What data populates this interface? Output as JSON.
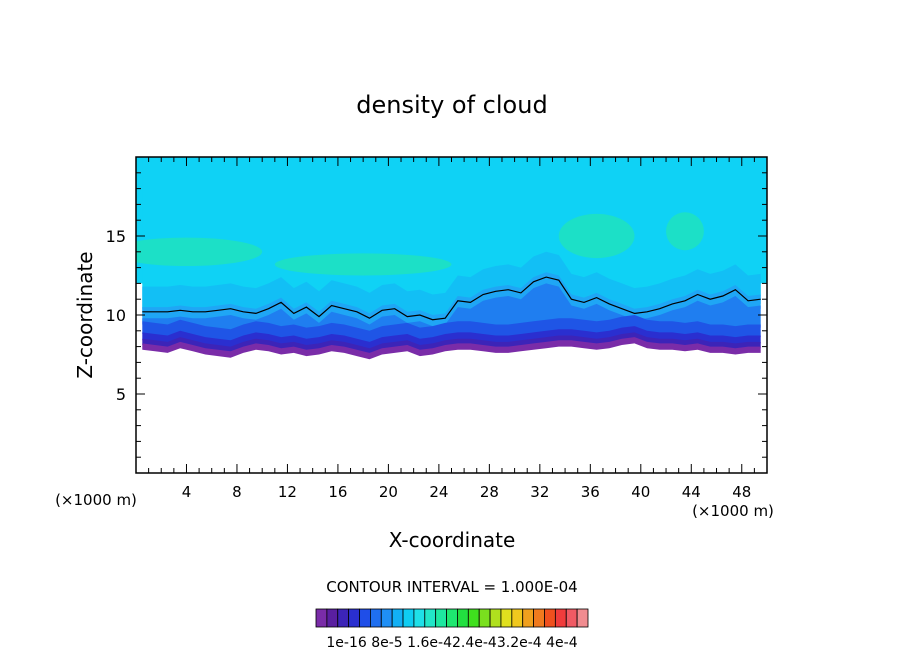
{
  "chart_data": {
    "type": "contour",
    "title": "density of cloud",
    "xlabel": "X-coordinate",
    "ylabel": "Z-coordinate",
    "x_unit": "(×1000 m)",
    "z_unit": "(×1000 m)",
    "xlim": [
      0,
      50
    ],
    "ylim": [
      0,
      20
    ],
    "x_ticks": [
      4,
      8,
      12,
      16,
      20,
      24,
      28,
      32,
      36,
      40,
      44,
      48
    ],
    "y_ticks": [
      5,
      10,
      15
    ],
    "contour_interval_label": "CONTOUR INTERVAL = 1.000E-04",
    "colorbar": {
      "colors": [
        "#7a2ca8",
        "#5a1fa0",
        "#3c24b8",
        "#2a2fd0",
        "#1f4ee8",
        "#1f6ff0",
        "#1f8ff5",
        "#12b0f5",
        "#0fcdf2",
        "#1fe0e8",
        "#22e6c8",
        "#1ee8a0",
        "#1ee870",
        "#22e040",
        "#3fe01e",
        "#7ae01e",
        "#b0e01e",
        "#e0e01e",
        "#f0c81e",
        "#f0a01e",
        "#f07a1e",
        "#f0501e",
        "#f03c3c",
        "#f05a64",
        "#f08c90"
      ],
      "tick_labels": [
        "1e-16",
        "8e-5",
        "1.6e-4",
        "2.4e-4",
        "3.2e-4",
        "4e-4"
      ],
      "tick_text": "1e-16 8e-5 1.6e-42.4e-43.2e-4 4e-4"
    },
    "cloud_base_z": [
      7.8,
      7.7,
      7.6,
      7.9,
      7.7,
      7.5,
      7.4,
      7.3,
      7.6,
      7.8,
      7.7,
      7.5,
      7.6,
      7.4,
      7.5,
      7.7,
      7.6,
      7.4,
      7.2,
      7.5,
      7.6,
      7.7,
      7.4,
      7.5,
      7.7,
      7.8,
      7.8,
      7.7,
      7.6,
      7.6,
      7.7,
      7.8,
      7.9,
      8.0,
      8.0,
      7.9,
      7.8,
      7.9,
      8.1,
      8.2,
      7.9,
      7.8,
      7.8,
      7.7,
      7.8,
      7.6,
      7.6,
      7.5,
      7.6,
      7.6
    ],
    "contour_top_z": [
      10.2,
      10.2,
      10.2,
      10.3,
      10.2,
      10.2,
      10.3,
      10.4,
      10.2,
      10.1,
      10.4,
      10.8,
      10.1,
      10.5,
      9.9,
      10.6,
      10.4,
      10.2,
      9.8,
      10.3,
      10.4,
      9.9,
      10.0,
      9.7,
      9.8,
      10.9,
      10.8,
      11.3,
      11.5,
      11.6,
      11.4,
      12.1,
      12.4,
      12.2,
      11.0,
      10.8,
      11.1,
      10.7,
      10.4,
      10.1,
      10.2,
      10.4,
      10.7,
      10.9,
      11.3,
      11.0,
      11.2,
      11.6,
      10.9,
      11.0
    ]
  }
}
